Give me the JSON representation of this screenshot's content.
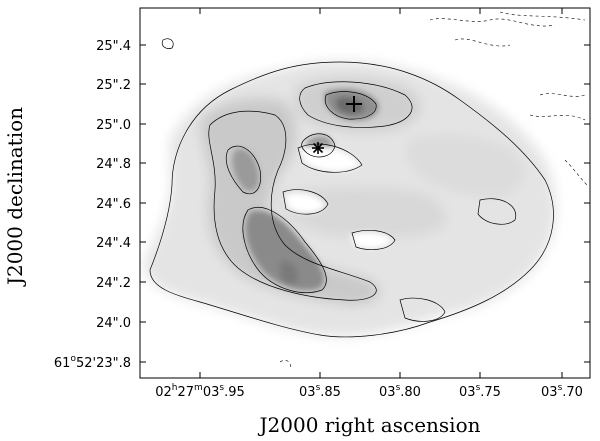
{
  "figure": {
    "xlabel": "J2000 right ascension",
    "ylabel": "J2000 declination",
    "x_ticks": [
      {
        "parts": [
          [
            "02",
            ""
          ],
          [
            "h",
            "sup"
          ],
          [
            "27",
            ""
          ],
          [
            "m",
            "sup"
          ],
          [
            "03",
            ""
          ],
          [
            "s",
            "sup"
          ],
          [
            ".95",
            ""
          ]
        ]
      },
      {
        "parts": [
          [
            "03",
            ""
          ],
          [
            "s",
            "sup"
          ],
          [
            ".85",
            ""
          ]
        ]
      },
      {
        "parts": [
          [
            "03",
            ""
          ],
          [
            "s",
            "sup"
          ],
          [
            ".80",
            ""
          ]
        ]
      },
      {
        "parts": [
          [
            "03",
            ""
          ],
          [
            "s",
            "sup"
          ],
          [
            ".75",
            ""
          ]
        ]
      },
      {
        "parts": [
          [
            "03",
            ""
          ],
          [
            "s",
            "sup"
          ],
          [
            ".70",
            ""
          ]
        ]
      }
    ],
    "y_ticks": [
      {
        "parts": [
          [
            "25\".4",
            ""
          ]
        ]
      },
      {
        "parts": [
          [
            "25\".2",
            ""
          ]
        ]
      },
      {
        "parts": [
          [
            "25\".0",
            ""
          ]
        ]
      },
      {
        "parts": [
          [
            "24\".8",
            ""
          ]
        ]
      },
      {
        "parts": [
          [
            "24\".6",
            ""
          ]
        ]
      },
      {
        "parts": [
          [
            "24\".4",
            ""
          ]
        ]
      },
      {
        "parts": [
          [
            "24\".2",
            ""
          ]
        ]
      },
      {
        "parts": [
          [
            "24\".0",
            ""
          ]
        ]
      },
      {
        "parts": [
          [
            "61",
            ""
          ],
          [
            "o",
            "sup"
          ],
          [
            "52'23\".8",
            ""
          ]
        ]
      }
    ],
    "markers": [
      {
        "symbol": "+",
        "name": "plus-marker"
      },
      {
        "symbol": "*",
        "name": "asterisk-marker"
      }
    ]
  }
}
